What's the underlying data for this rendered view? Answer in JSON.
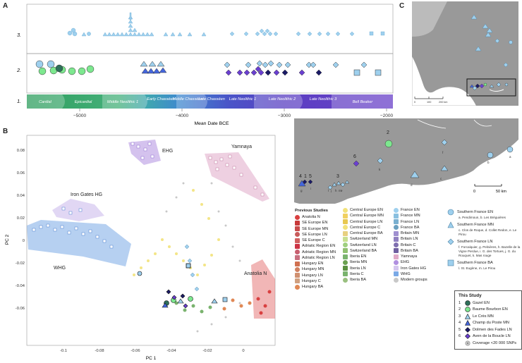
{
  "panel_labels": {
    "a": "A",
    "b": "B",
    "c": "C"
  },
  "timeline": {
    "row_labels": [
      "3.",
      "2.",
      "1."
    ],
    "periods": [
      "Cardial",
      "Epicardial",
      "Middle Neolithic 1",
      "Early Chasséen",
      "Middle Chasséen",
      "Late Chasséen",
      "Late Neolithic 1",
      "Late Neolithic 2",
      "Late Neolithic 3",
      "Bell Beaker"
    ],
    "xticks": [
      "−5000",
      "−4000",
      "−3000",
      "−2000"
    ],
    "xlabel": "Mean Date BCE"
  },
  "pca": {
    "xlabel": "PC 1",
    "ylabel": "PC 2",
    "xticks": [
      "-0.1",
      "-0.08",
      "-0.06",
      "-0.04",
      "-0.02",
      "0"
    ],
    "yticks": [
      "0.08",
      "0.06",
      "0.04",
      "0.02",
      "0",
      "-0.02",
      "-0.04",
      "-0.06"
    ],
    "group_labels": {
      "ehg": "EHG",
      "yamnaya": "Yamnaya",
      "iron_gates": "Iron Gates HG",
      "whg": "WHG",
      "anatolia": "Anatolia N"
    }
  },
  "map_c": {
    "scale_ticks": [
      "0",
      "100",
      "200 km"
    ]
  },
  "map_zoom": {
    "site_numbers": [
      "1",
      "2",
      "3",
      "4",
      "5",
      "6"
    ],
    "site_letters": [
      "a",
      "b",
      "c",
      "d",
      "e",
      "f",
      "g",
      "h",
      "i",
      "j",
      "k",
      "l",
      "m"
    ],
    "scale_ticks": [
      "0",
      "50 km"
    ]
  },
  "legend": {
    "title": "Previous Studies",
    "col1": [
      "Anatolia N",
      "SE Europe EN",
      "SE Europe MN",
      "SE Europe LN",
      "SE Europe C",
      "Adriatic Region EN",
      "Adriatic Region MN",
      "Adriatic Region LN",
      "Hungary EN",
      "Hungary MN",
      "Hungary LN",
      "Hungary C",
      "Hungary BA"
    ],
    "col2": [
      "Central Europe EN",
      "Central Europe MN",
      "Central Europe LN",
      "Central Europe C",
      "Central Europe BA",
      "Switzerland MN",
      "Switzerland LN",
      "Switzerland BA",
      "Iberia EN",
      "Iberia MN",
      "Iberia LN",
      "Iberia C",
      "Iberia BA"
    ],
    "col3": [
      "France EN",
      "France MN",
      "France LN",
      "France BA",
      "Britain MN",
      "Britain LN",
      "Britain C",
      "Britain BA",
      "Yamnaya",
      "EHG",
      "Iron Gates HG",
      "WHG",
      "Modern groups"
    ]
  },
  "southern_france": [
    {
      "title": "Southern France EN",
      "sites": "a. Pendimoun, b. Les Bréguières"
    },
    {
      "title": "Southern France MN",
      "sites": "c. Clos de Roque, d. Collet Redon, e. Le Pirou"
    },
    {
      "title": "Southern France LN",
      "sites": "f. Forcalquier, g. Pelnières, h. Bazelle de la Vigne Perdue, i. G. des Tortues, j. G. du Rouquet, k. Mas rouge"
    },
    {
      "title": "Southern France BA",
      "sites": "l. St. Eugène, m. Le Pirou"
    }
  ],
  "this_study": {
    "title": "This Study",
    "items": [
      {
        "num": "1",
        "label": "Gazel EN",
        "color": "#2f6f5a",
        "shape": "circle"
      },
      {
        "num": "2",
        "label": "Baume Bourbon EN",
        "color": "#7de88f",
        "shape": "circle"
      },
      {
        "num": "3",
        "label": "Le Crès MN",
        "color": "#9ed0ee",
        "shape": "triangle"
      },
      {
        "num": "4",
        "label": "Champ du Poste MN",
        "color": "#4466dd",
        "shape": "triangle"
      },
      {
        "num": "5",
        "label": "Dolmen des Fades LN",
        "color": "#1a1a66",
        "shape": "diamond"
      },
      {
        "num": "6",
        "label": "Aven de la Boucle LN",
        "color": "#6a3fd0",
        "shape": "diamond"
      }
    ],
    "coverage": "Coverage <20 000 SNPs"
  }
}
